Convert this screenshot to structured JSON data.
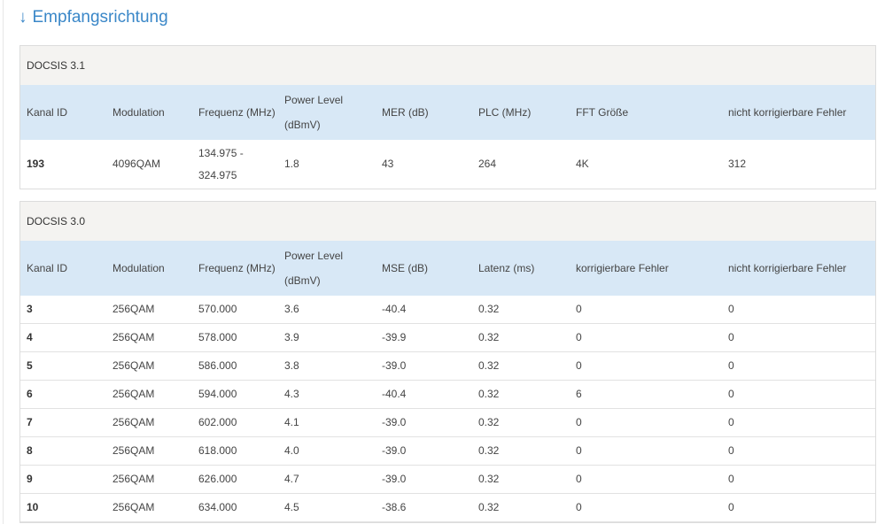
{
  "heading": {
    "arrow": "↓",
    "title": "Empfangsrichtung"
  },
  "docsis31": {
    "title": "DOCSIS 3.1",
    "columns": [
      "Kanal ID",
      "Modulation",
      "Frequenz (MHz)",
      "Power Level (dBmV)",
      "MER (dB)",
      "PLC (MHz)",
      "FFT Größe",
      "nicht korrigierbare Fehler"
    ],
    "rows": [
      [
        "193",
        "4096QAM",
        "134.975 - 324.975",
        "1.8",
        "43",
        "264",
        "4K",
        "312"
      ]
    ]
  },
  "docsis30": {
    "title": "DOCSIS 3.0",
    "columns": [
      "Kanal ID",
      "Modulation",
      "Frequenz (MHz)",
      "Power Level (dBmV)",
      "MSE (dB)",
      "Latenz (ms)",
      "korrigierbare Fehler",
      "nicht korrigierbare Fehler"
    ],
    "rows": [
      [
        "3",
        "256QAM",
        "570.000",
        "3.6",
        "-40.4",
        "0.32",
        "0",
        "0"
      ],
      [
        "4",
        "256QAM",
        "578.000",
        "3.9",
        "-39.9",
        "0.32",
        "0",
        "0"
      ],
      [
        "5",
        "256QAM",
        "586.000",
        "3.8",
        "-39.0",
        "0.32",
        "0",
        "0"
      ],
      [
        "6",
        "256QAM",
        "594.000",
        "4.3",
        "-40.4",
        "0.32",
        "6",
        "0"
      ],
      [
        "7",
        "256QAM",
        "602.000",
        "4.1",
        "-39.0",
        "0.32",
        "0",
        "0"
      ],
      [
        "8",
        "256QAM",
        "618.000",
        "4.0",
        "-39.0",
        "0.32",
        "0",
        "0"
      ],
      [
        "9",
        "256QAM",
        "626.000",
        "4.7",
        "-39.0",
        "0.32",
        "0",
        "0"
      ],
      [
        "10",
        "256QAM",
        "634.000",
        "4.5",
        "-38.6",
        "0.32",
        "0",
        "0"
      ]
    ]
  }
}
